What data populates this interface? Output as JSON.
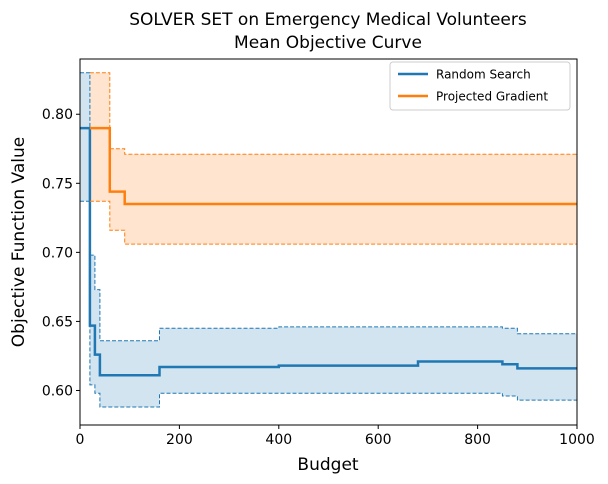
{
  "chart_data": {
    "type": "line",
    "title_line1": "SOLVER SET on Emergency Medical Volunteers",
    "title_line2": "Mean Objective Curve",
    "xlabel": "Budget",
    "ylabel": "Objective Function Value",
    "xlim": [
      0,
      1000
    ],
    "ylim": [
      0.575,
      0.84
    ],
    "xticks": [
      0,
      200,
      400,
      600,
      800,
      1000
    ],
    "xtick_labels": [
      "0",
      "200",
      "400",
      "600",
      "800",
      "1000"
    ],
    "yticks": [
      0.6,
      0.65,
      0.7,
      0.75,
      0.8
    ],
    "ytick_labels": [
      "0.60",
      "0.65",
      "0.70",
      "0.75",
      "0.80"
    ],
    "grid": false,
    "legend_position": "top-right",
    "series": [
      {
        "name": "Random Search",
        "color": "#1f77b4",
        "step": true,
        "mean": [
          [
            0,
            0.79
          ],
          [
            20,
            0.647
          ],
          [
            30,
            0.626
          ],
          [
            40,
            0.611
          ],
          [
            160,
            0.617
          ],
          [
            400,
            0.618
          ],
          [
            680,
            0.621
          ],
          [
            850,
            0.619
          ],
          [
            880,
            0.616
          ],
          [
            1000,
            0.616
          ]
        ],
        "upper": [
          [
            0,
            0.83
          ],
          [
            20,
            0.698
          ],
          [
            30,
            0.673
          ],
          [
            40,
            0.636
          ],
          [
            160,
            0.645
          ],
          [
            400,
            0.646
          ],
          [
            850,
            0.645
          ],
          [
            880,
            0.641
          ],
          [
            1000,
            0.641
          ]
        ],
        "lower": [
          [
            0,
            0.737
          ],
          [
            20,
            0.604
          ],
          [
            30,
            0.598
          ],
          [
            40,
            0.588
          ],
          [
            160,
            0.598
          ],
          [
            850,
            0.596
          ],
          [
            880,
            0.593
          ],
          [
            1000,
            0.593
          ]
        ]
      },
      {
        "name": "Projected Gradient",
        "color": "#ff7f0e",
        "step": true,
        "mean": [
          [
            20,
            0.79
          ],
          [
            60,
            0.744
          ],
          [
            90,
            0.735
          ],
          [
            1000,
            0.735
          ]
        ],
        "upper": [
          [
            20,
            0.83
          ],
          [
            60,
            0.775
          ],
          [
            90,
            0.771
          ],
          [
            1000,
            0.771
          ]
        ],
        "lower": [
          [
            20,
            0.737
          ],
          [
            60,
            0.716
          ],
          [
            90,
            0.706
          ],
          [
            1000,
            0.706
          ]
        ]
      }
    ]
  }
}
